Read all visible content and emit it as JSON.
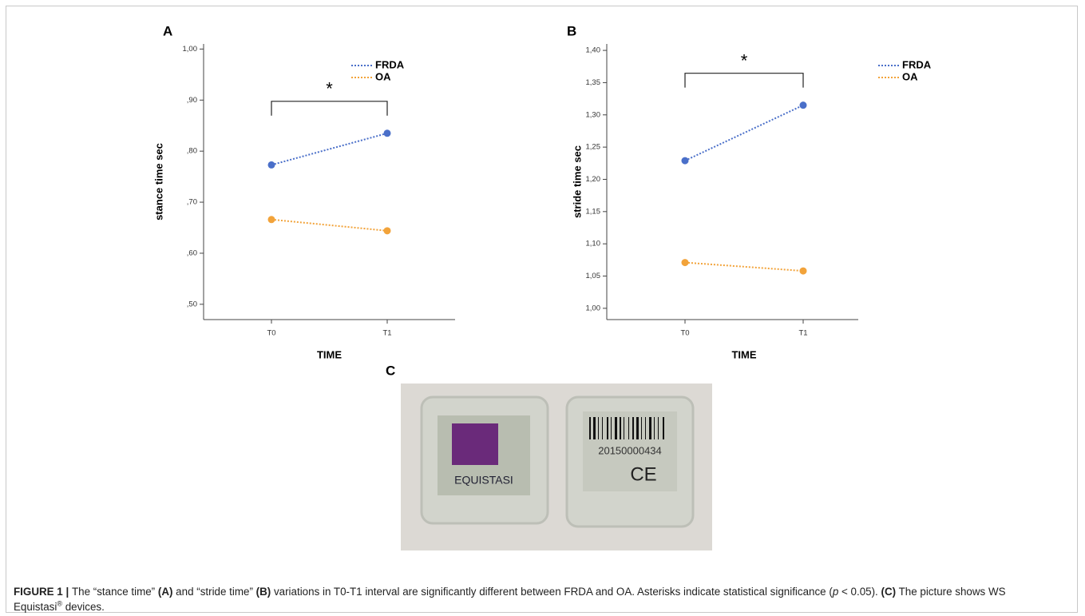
{
  "panels": [
    "A",
    "B",
    "C"
  ],
  "chart_data": [
    {
      "type": "line",
      "ylabel": "stance time sec",
      "xlabel": "TIME",
      "categories": [
        "T0",
        "T1"
      ],
      "series": [
        {
          "name": "FRDA",
          "color": "#4a6fc9",
          "values": [
            0.773,
            0.835
          ]
        },
        {
          "name": "OA",
          "color": "#f2a33a",
          "values": [
            0.666,
            0.644
          ]
        }
      ],
      "ylim": [
        0.47,
        1.01
      ],
      "yticks": [
        {
          "value": 0.5,
          "label": ",50"
        },
        {
          "value": 0.6,
          "label": ",60"
        },
        {
          "value": 0.7,
          "label": ",70"
        },
        {
          "value": 0.8,
          "label": ",80"
        },
        {
          "value": 0.9,
          "label": ",90"
        },
        {
          "value": 1.0,
          "label": "1,00"
        }
      ],
      "annotation": "*"
    },
    {
      "type": "line",
      "ylabel": "stride time sec",
      "xlabel": "TIME",
      "categories": [
        "T0",
        "T1"
      ],
      "series": [
        {
          "name": "FRDA",
          "color": "#4a6fc9",
          "values": [
            1.229,
            1.315
          ]
        },
        {
          "name": "OA",
          "color": "#f2a33a",
          "values": [
            1.071,
            1.058
          ]
        }
      ],
      "ylim": [
        0.9825,
        1.41
      ],
      "yticks": [
        {
          "value": 1.0,
          "label": "1,00"
        },
        {
          "value": 1.05,
          "label": "1,05"
        },
        {
          "value": 1.1,
          "label": "1,10"
        },
        {
          "value": 1.15,
          "label": "1,15"
        },
        {
          "value": 1.2,
          "label": "1,20"
        },
        {
          "value": 1.25,
          "label": "1,25"
        },
        {
          "value": 1.3,
          "label": "1,30"
        },
        {
          "value": 1.35,
          "label": "1,35"
        },
        {
          "value": 1.4,
          "label": "1,40"
        }
      ],
      "annotation": "*"
    }
  ],
  "photo": {
    "brand": "EQUISTASI",
    "serial": "20150000434",
    "mark": "CE"
  },
  "caption": {
    "runs": [
      {
        "text": "FIGURE 1 | ",
        "style": "bold"
      },
      {
        "text": "The “stance time” "
      },
      {
        "text": "(A)",
        "style": "bold"
      },
      {
        "text": " and “stride time” "
      },
      {
        "text": "(B)",
        "style": "bold"
      },
      {
        "text": " variations in T0-T1 interval are significantly different between FRDA and OA. Asterisks indicate statistical significance ("
      },
      {
        "text": "p",
        "style": "italic"
      },
      {
        "text": " < 0.05). "
      },
      {
        "text": "(C)",
        "style": "bold"
      },
      {
        "text": " The picture shows WS Equistasi"
      },
      {
        "text": "®",
        "style": "sup"
      },
      {
        "text": " devices."
      }
    ]
  }
}
